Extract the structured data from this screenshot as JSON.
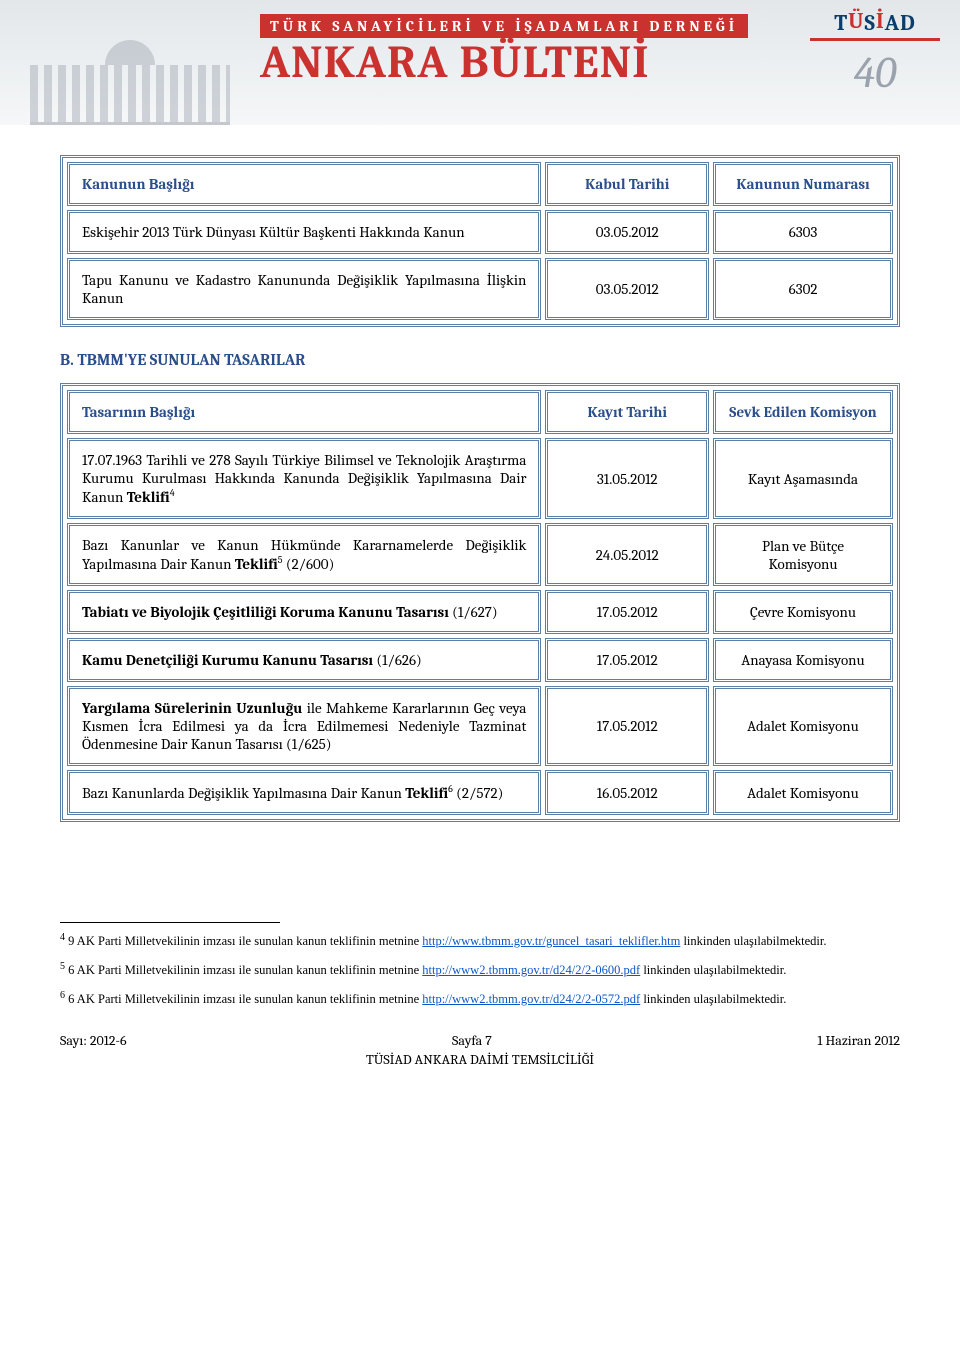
{
  "banner": {
    "top_text": "TÜRK SANAYİCİLERİ VE İŞADAMLARI DERNEĞİ",
    "main_title": "ANKARA BÜLTENİ",
    "logo_text": "TÜSİAD",
    "logo_40": "40"
  },
  "table1": {
    "headers": {
      "title": "Kanunun Başlığı",
      "date": "Kabul Tarihi",
      "num": "Kanunun Numarası"
    },
    "rows": [
      {
        "title": "Eskişehir 2013 Türk Dünyası Kültür Başkenti Hakkında Kanun",
        "date": "03.05.2012",
        "num": "6303"
      },
      {
        "title": "Tapu Kanunu ve Kadastro Kanununda Değişiklik Yapılmasına İlişkin Kanun",
        "date": "03.05.2012",
        "num": "6302"
      }
    ]
  },
  "section_b": "B. TBMM'YE SUNULAN TASARILAR",
  "table2": {
    "headers": {
      "title": "Tasarının Başlığı",
      "date": "Kayıt Tarihi",
      "com": "Sevk Edilen Komisyon"
    },
    "rows": [
      {
        "title_pre": "17.07.1963 Tarihli ve 278 Sayılı Türkiye Bilimsel ve Teknolojik Araştırma Kurumu Kurulması Hakkında Kanunda Değişiklik Yapılmasına Dair Kanun ",
        "title_bold": "Teklifi",
        "sup": "4",
        "date": "31.05.2012",
        "com": "Kayıt Aşamasında"
      },
      {
        "title_pre": "Bazı Kanunlar ve Kanun Hükmünde Kararnamelerde Değişiklik Yapılmasına Dair Kanun ",
        "title_bold": "Teklifi",
        "sup": "5",
        "title_post": " (2/600)",
        "date": "24.05.2012",
        "com": "Plan ve Bütçe Komisyonu"
      },
      {
        "title_bold": "Tabiatı ve Biyolojik Çeşitliliği Koruma Kanunu Tasarısı",
        "title_post": " (1/627)",
        "date": "17.05.2012",
        "com": "Çevre Komisyonu"
      },
      {
        "title_bold": "Kamu Denetçiliği Kurumu Kanunu Tasarısı",
        "title_post": " (1/626)",
        "date": "17.05.2012",
        "com": "Anayasa Komisyonu"
      },
      {
        "title_bold": "Yargılama Sürelerinin Uzunluğu",
        "title_post": " ile Mahkeme Kararlarının Geç veya Kısmen İcra Edilmesi ya da İcra Edilmemesi Nedeniyle Tazminat Ödenmesine Dair Kanun Tasarısı (1/625)",
        "date": "17.05.2012",
        "com": "Adalet Komisyonu"
      },
      {
        "title_pre": "Bazı Kanunlarda Değişiklik Yapılmasına Dair Kanun ",
        "title_bold": "Teklifi",
        "sup": "6",
        "title_post": " (2/572)",
        "date": "16.05.2012",
        "com": "Adalet Komisyonu"
      }
    ]
  },
  "footnotes": [
    {
      "num": "4",
      "pre": " 9 AK Parti Milletvekilinin imzası ile sunulan kanun teklifinin metnine ",
      "link": "http://www.tbmm.gov.tr/guncel_tasari_teklifler.htm",
      "post": " linkinden ulaşılabilmektedir."
    },
    {
      "num": "5",
      "pre": " 6 AK Parti Milletvekilinin imzası ile sunulan kanun teklifinin metnine ",
      "link": "http://www2.tbmm.gov.tr/d24/2/2-0600.pdf",
      "post": " linkinden ulaşılabilmektedir."
    },
    {
      "num": "6",
      "pre": " 6 AK Parti Milletvekilinin imzası ile sunulan kanun teklifinin metnine ",
      "link": "http://www2.tbmm.gov.tr/d24/2/2-0572.pdf",
      "post": " linkinden ulaşılabilmektedir."
    }
  ],
  "footer": {
    "left": "Sayı: 2012-6",
    "center": "Sayfa 7",
    "right": "1 Haziran 2012",
    "org": "TÜSİAD ANKARA DAİMİ TEMSİLCİLİĞİ"
  }
}
